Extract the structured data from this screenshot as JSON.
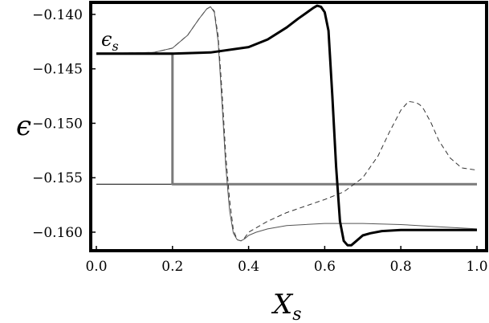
{
  "chart_data": {
    "type": "line",
    "title": "",
    "xlabel": "X",
    "xlabel_sub": "s",
    "ylabel": "ϵ",
    "annotation": {
      "text": "ϵ",
      "sub": "s"
    },
    "xlim": [
      0.0,
      1.0
    ],
    "ylim": [
      -0.1617,
      -0.1389
    ],
    "x_ticks": [
      0.0,
      0.2,
      0.4,
      0.6,
      0.8,
      1.0
    ],
    "x_tick_labels": [
      "0.0",
      "0.2",
      "0.4",
      "0.6",
      "0.8",
      "1.0"
    ],
    "y_ticks": [
      -0.14,
      -0.145,
      -0.15,
      -0.155,
      -0.16
    ],
    "y_tick_labels": [
      "−0.140",
      "−0.145",
      "−0.150",
      "−0.155",
      "−0.160"
    ],
    "grid": false,
    "legend": "none",
    "series": [
      {
        "style": "thick-black",
        "color": "#000000",
        "x": [
          0.0,
          0.2,
          0.3,
          0.4,
          0.45,
          0.5,
          0.53,
          0.55,
          0.57,
          0.58,
          0.59,
          0.6,
          0.61,
          0.62,
          0.63,
          0.64,
          0.65,
          0.66,
          0.67,
          0.68,
          0.7,
          0.72,
          0.75,
          0.8,
          0.85,
          0.9,
          1.0
        ],
        "y": [
          -0.1436,
          -0.1436,
          -0.1435,
          -0.143,
          -0.1423,
          -0.1412,
          -0.1404,
          -0.1399,
          -0.1394,
          -0.1392,
          -0.1393,
          -0.1398,
          -0.1415,
          -0.1475,
          -0.154,
          -0.159,
          -0.1608,
          -0.1612,
          -0.1612,
          -0.1609,
          -0.1603,
          -0.1601,
          -0.1599,
          -0.1598,
          -0.1598,
          -0.1598,
          -0.1598
        ]
      },
      {
        "style": "thin-gray",
        "color": "#555555",
        "x": [
          0.0,
          0.15,
          0.2,
          0.24,
          0.27,
          0.29,
          0.3,
          0.31,
          0.32,
          0.33,
          0.34,
          0.35,
          0.36,
          0.37,
          0.38,
          0.39,
          0.4,
          0.42,
          0.45,
          0.5,
          0.6,
          0.7,
          0.8,
          0.9,
          1.0
        ],
        "y": [
          -0.1436,
          -0.1435,
          -0.1431,
          -0.1419,
          -0.1404,
          -0.1395,
          -0.1393,
          -0.1398,
          -0.1425,
          -0.148,
          -0.154,
          -0.158,
          -0.1601,
          -0.1607,
          -0.1608,
          -0.1606,
          -0.1603,
          -0.16,
          -0.1597,
          -0.1594,
          -0.1592,
          -0.1592,
          -0.1593,
          -0.1595,
          -0.1597
        ]
      },
      {
        "style": "dashed",
        "color": "#333333",
        "x": [
          0.0,
          0.15,
          0.2,
          0.24,
          0.27,
          0.29,
          0.3,
          0.31,
          0.32,
          0.33,
          0.34,
          0.35,
          0.36,
          0.37,
          0.38,
          0.39,
          0.4,
          0.45,
          0.5,
          0.55,
          0.6,
          0.65,
          0.7,
          0.74,
          0.77,
          0.8,
          0.82,
          0.84,
          0.85,
          0.86,
          0.88,
          0.9,
          0.93,
          0.96,
          1.0
        ],
        "y": [
          -0.1436,
          -0.1435,
          -0.1431,
          -0.1419,
          -0.1404,
          -0.1395,
          -0.1393,
          -0.1397,
          -0.142,
          -0.147,
          -0.153,
          -0.157,
          -0.1598,
          -0.1607,
          -0.1608,
          -0.1605,
          -0.16,
          -0.159,
          -0.1582,
          -0.1576,
          -0.157,
          -0.1563,
          -0.155,
          -0.153,
          -0.1508,
          -0.1488,
          -0.148,
          -0.1481,
          -0.1483,
          -0.1487,
          -0.15,
          -0.1516,
          -0.1532,
          -0.1541,
          -0.1543
        ]
      },
      {
        "style": "gray-step",
        "color": "#7a7a7a",
        "x": [
          0.0,
          0.2,
          0.2,
          1.0
        ],
        "y": [
          -0.1436,
          -0.1436,
          -0.1556,
          -0.1556
        ]
      },
      {
        "style": "hline-thin",
        "color": "#000000",
        "x": [
          0.0,
          1.0
        ],
        "y": [
          -0.1556,
          -0.1556
        ]
      }
    ]
  }
}
